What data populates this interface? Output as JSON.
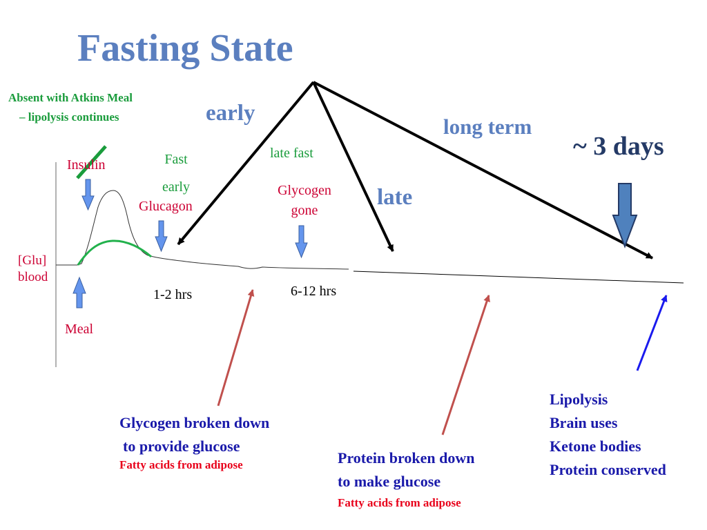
{
  "title": "Fasting State",
  "atkins_note": [
    "Absent with Atkins Meal",
    "– lipolysis continues"
  ],
  "phases": {
    "early": "early",
    "late": "late",
    "long_term": "long term",
    "days": "~ 3 days"
  },
  "graph": {
    "insulin": "Insulin",
    "glu": [
      "[Glu]",
      "blood"
    ],
    "meal": "Meal",
    "fast_early": [
      "Fast",
      "early"
    ],
    "glucagon": "Glucagon",
    "late_fast": "late fast",
    "glycogen_gone": [
      "Glycogen",
      "gone"
    ],
    "t1": "1-2 hrs",
    "t2": "6-12 hrs"
  },
  "notes": {
    "glycogen": {
      "line1": "Glycogen broken down",
      "line2": "to provide glucose",
      "sub": "Fatty acids from adipose"
    },
    "protein": {
      "line1": "Protein broken down",
      "line2": "to make glucose",
      "sub": "Fatty acids from adipose"
    },
    "lipolysis": [
      "Lipolysis",
      "Brain uses",
      "Ketone bodies",
      "Protein conserved"
    ]
  },
  "colors": {
    "title": "#5b7fbf",
    "accent_green": "#1a9c3c",
    "label_red": "#cc0033",
    "note_blue": "#1a1aaa",
    "arrow_red": "#c0504d",
    "marker_blue": "#4f81bd"
  }
}
